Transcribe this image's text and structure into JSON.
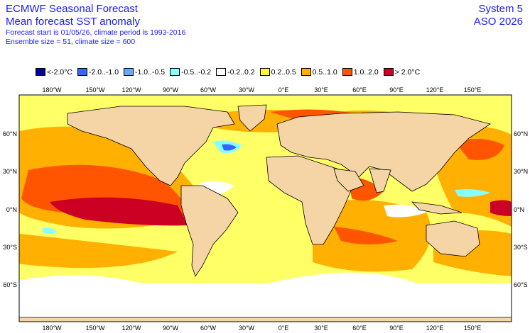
{
  "header": {
    "title": "ECMWF Seasonal Forecast",
    "subtitle": "Mean forecast SST anomaly",
    "forecast_info": "Forecast start is 01/05/26, climate period is 1993-2016",
    "ensemble_info": "Ensemble size = 51, climate size = 600",
    "system": "System 5",
    "period": "ASO 2026"
  },
  "legend": [
    {
      "label": "<-2.0°C",
      "color": "#000099"
    },
    {
      "label": "-2.0..-1.0",
      "color": "#3366ff"
    },
    {
      "label": "-1.0..-0.5",
      "color": "#66aaff"
    },
    {
      "label": "-0.5..-0.2",
      "color": "#88ffff"
    },
    {
      "label": "-0.2..0.2",
      "color": "#ffffff"
    },
    {
      "label": "0.2..0.5",
      "color": "#ffff33"
    },
    {
      "label": "0.5..1.0",
      "color": "#ffb000"
    },
    {
      "label": "1.0..2.0",
      "color": "#ff5500"
    },
    {
      "label": "> 2.0°C",
      "color": "#cc0022"
    }
  ],
  "axes": {
    "lon_labels": [
      "180°W",
      "150°W",
      "120°W",
      "90°W",
      "60°W",
      "30°W",
      "0°E",
      "30°E",
      "60°E",
      "90°E",
      "120°E",
      "150°E"
    ],
    "lat_labels": [
      "60°N",
      "30°N",
      "0°N",
      "30°S",
      "60°S"
    ]
  },
  "colors": {
    "land": "#f5d5a5",
    "coast": "#000000",
    "text": "#1a1aff"
  }
}
